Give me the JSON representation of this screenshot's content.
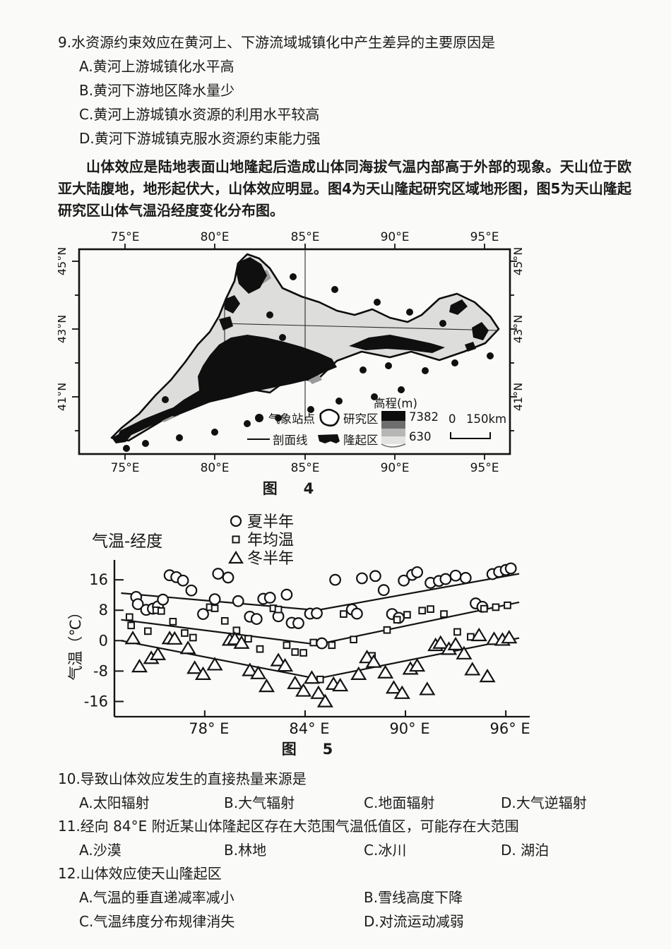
{
  "page": {
    "bg": "#fafaf8",
    "ink": "#1b1b1b"
  },
  "q9": {
    "question": "9.水资源约束效应在黄河上、下游流域城镇化中产生差异的主要原因是",
    "options": [
      "A.黄河上游城镇化水平高",
      "B.黄河下游地区降水量少",
      "C.黄河上游城镇水资源的利用水平较高",
      "D.黄河下游城镇克服水资源约束能力强"
    ]
  },
  "passage": "山体效应是陆地表面山地隆起后造成山体同海拔气温内部高于外部的现象。天山位于欧亚大陆腹地，地形起伏大，山体效应明显。图4为天山隆起研究区域地形图，图5为天山隆起研究区山体气温沿经度变化分布图。",
  "figure4": {
    "caption": "图　4",
    "top_lon": [
      "75°E",
      "80°E",
      "85°E",
      "90°E",
      "95°E"
    ],
    "bottom_lon": [
      "75°E",
      "80°E",
      "85°E",
      "90°E",
      "95°E"
    ],
    "lat_left": [
      "45°N",
      "43°N",
      "41°N"
    ],
    "lat_right": [
      "45°N",
      "43°N",
      "41°N"
    ],
    "legend": {
      "station": "气象站点",
      "study_area": "研究区",
      "profile": "剖面线",
      "uplift": "隆起区",
      "elev_title": "高程(m)",
      "elev_max": "7382",
      "elev_min": "630",
      "scale_zero": "0",
      "scale_len": "150km"
    }
  },
  "figure5": {
    "caption": "图　5",
    "chart_data": {
      "type": "scatter",
      "title": "气温-经度",
      "ylabel": "气温（℃）",
      "xlabel": "",
      "grid": false,
      "legend_position": "top-center",
      "xlim": [
        72.6,
        97.6
      ],
      "ylim": [
        -20,
        19
      ],
      "x_ticks": [
        {
          "v": 78,
          "label": "78° E"
        },
        {
          "v": 84,
          "label": "84° E"
        },
        {
          "v": 90,
          "label": "90° E"
        },
        {
          "v": 96,
          "label": "96° E"
        }
      ],
      "y_ticks": [
        {
          "v": 16,
          "label": "16"
        },
        {
          "v": 8,
          "label": "8"
        },
        {
          "v": 0,
          "label": "0"
        },
        {
          "v": -8,
          "label": "-8"
        },
        {
          "v": -16,
          "label": "-16"
        }
      ],
      "series": [
        {
          "name": "夏半年",
          "marker": "circle",
          "points": [
            [
              73.9,
              11.5
            ],
            [
              74.0,
              9.6
            ],
            [
              74.5,
              8.1
            ],
            [
              74.9,
              8.4
            ],
            [
              75.2,
              9.0
            ],
            [
              75.5,
              10.8
            ],
            [
              75.9,
              17.2
            ],
            [
              76.3,
              16.7
            ],
            [
              76.7,
              15.8
            ],
            [
              77.2,
              13.2
            ],
            [
              77.9,
              7.0
            ],
            [
              78.6,
              10.9
            ],
            [
              78.8,
              17.6
            ],
            [
              79.4,
              16.6
            ],
            [
              80.0,
              10.4
            ],
            [
              80.7,
              6.3
            ],
            [
              81.1,
              5.7
            ],
            [
              81.5,
              11.0
            ],
            [
              81.9,
              11.3
            ],
            [
              82.4,
              6.4
            ],
            [
              82.9,
              12.1
            ],
            [
              83.2,
              4.7
            ],
            [
              83.6,
              4.6
            ],
            [
              84.3,
              7.1
            ],
            [
              84.7,
              7.2
            ],
            [
              85.0,
              -0.7
            ],
            [
              85.8,
              16.0
            ],
            [
              86.8,
              8.2
            ],
            [
              87.1,
              7.1
            ],
            [
              87.4,
              16.4
            ],
            [
              88.2,
              17.0
            ],
            [
              88.7,
              13.3
            ],
            [
              89.2,
              7.0
            ],
            [
              89.6,
              6.0
            ],
            [
              89.9,
              15.8
            ],
            [
              90.4,
              17.3
            ],
            [
              90.7,
              18.0
            ],
            [
              91.5,
              15.2
            ],
            [
              92.0,
              15.7
            ],
            [
              92.4,
              16.2
            ],
            [
              93.0,
              17.1
            ],
            [
              93.6,
              16.5
            ],
            [
              94.2,
              9.8
            ],
            [
              94.6,
              8.9
            ],
            [
              95.2,
              17.5
            ],
            [
              95.6,
              18.1
            ],
            [
              96.0,
              18.6
            ],
            [
              96.3,
              19.0
            ]
          ]
        },
        {
          "name": "年均温",
          "marker": "square",
          "points": [
            [
              73.5,
              6.2
            ],
            [
              73.6,
              4.0
            ],
            [
              74.6,
              2.5
            ],
            [
              75.1,
              8.0
            ],
            [
              75.4,
              7.8
            ],
            [
              76.1,
              5.0
            ],
            [
              76.8,
              2.0
            ],
            [
              77.3,
              0.8
            ],
            [
              78.3,
              8.8
            ],
            [
              78.6,
              8.5
            ],
            [
              79.2,
              5.2
            ],
            [
              79.9,
              2.7
            ],
            [
              80.6,
              0.5
            ],
            [
              81.3,
              -2.2
            ],
            [
              82.1,
              8.5
            ],
            [
              82.4,
              8.2
            ],
            [
              82.9,
              -1.2
            ],
            [
              83.4,
              -3.0
            ],
            [
              83.9,
              -3.2
            ],
            [
              84.5,
              -0.5
            ],
            [
              84.9,
              -10.2
            ],
            [
              85.6,
              -1.2
            ],
            [
              86.3,
              7.0
            ],
            [
              86.9,
              0.3
            ],
            [
              88.0,
              -4.0
            ],
            [
              88.9,
              2.8
            ],
            [
              89.5,
              5.5
            ],
            [
              90.1,
              6.8
            ],
            [
              91.0,
              7.9
            ],
            [
              91.5,
              8.3
            ],
            [
              92.3,
              7.0
            ],
            [
              93.1,
              2.3
            ],
            [
              93.9,
              1.0
            ],
            [
              94.7,
              8.4
            ],
            [
              95.4,
              8.8
            ],
            [
              96.1,
              9.3
            ]
          ]
        },
        {
          "name": "冬半年",
          "marker": "triangle",
          "points": [
            [
              73.7,
              0.6
            ],
            [
              74.1,
              -6.8
            ],
            [
              74.8,
              -4.6
            ],
            [
              75.2,
              -3.6
            ],
            [
              75.9,
              0.6
            ],
            [
              76.2,
              0.5
            ],
            [
              77.0,
              -2.0
            ],
            [
              77.4,
              -7.2
            ],
            [
              77.9,
              -8.8
            ],
            [
              78.6,
              -6.3
            ],
            [
              79.5,
              0.2
            ],
            [
              79.8,
              0.4
            ],
            [
              80.2,
              -0.6
            ],
            [
              80.7,
              -7.8
            ],
            [
              81.2,
              -8.6
            ],
            [
              81.7,
              -12.0
            ],
            [
              82.4,
              -5.2
            ],
            [
              82.8,
              -6.6
            ],
            [
              83.4,
              -11.2
            ],
            [
              83.9,
              -13.2
            ],
            [
              84.4,
              -9.8
            ],
            [
              84.8,
              -13.8
            ],
            [
              85.2,
              -16.0
            ],
            [
              85.7,
              -11.4
            ],
            [
              86.1,
              -11.8
            ],
            [
              87.2,
              -8.8
            ],
            [
              87.7,
              -4.4
            ],
            [
              88.1,
              -5.6
            ],
            [
              88.8,
              -8.4
            ],
            [
              89.3,
              -12.4
            ],
            [
              89.8,
              -13.8
            ],
            [
              90.3,
              -7.4
            ],
            [
              90.7,
              -6.6
            ],
            [
              91.3,
              -12.8
            ],
            [
              91.8,
              -1.2
            ],
            [
              92.1,
              -0.6
            ],
            [
              92.6,
              -2.2
            ],
            [
              93.0,
              -1.0
            ],
            [
              93.5,
              -3.4
            ],
            [
              94.0,
              -7.6
            ],
            [
              94.4,
              1.4
            ],
            [
              94.9,
              -9.4
            ],
            [
              95.3,
              0.4
            ],
            [
              95.8,
              0.2
            ],
            [
              96.2,
              0.8
            ]
          ]
        }
      ],
      "trend_lines": [
        {
          "series": "夏半年",
          "points": [
            [
              73.0,
              12.5
            ],
            [
              84.7,
              8.0
            ],
            [
              96.8,
              17.6
            ]
          ]
        },
        {
          "series": "年均温",
          "points": [
            [
              73.0,
              5.5
            ],
            [
              84.7,
              -1.0
            ],
            [
              96.8,
              10.1
            ]
          ]
        },
        {
          "series": "冬半年",
          "points": [
            [
              73.0,
              0.0
            ],
            [
              84.7,
              -10.0
            ],
            [
              96.8,
              0.7
            ]
          ]
        }
      ]
    }
  },
  "q10": {
    "question": "10.导致山体效应发生的直接热量来源是",
    "options": [
      "A.太阳辐射",
      "B.大气辐射",
      "C.地面辐射",
      "D.大气逆辐射"
    ]
  },
  "q11": {
    "question": "11.经向 84°E 附近某山体隆起区存在大范围气温低值区，可能存在大范围",
    "options": [
      "A.沙漠",
      "B.林地",
      "C.冰川",
      "D. 湖泊"
    ]
  },
  "q12": {
    "question": "12.山体效应使天山隆起区",
    "options": [
      "A.气温的垂直递减率减小",
      "B.雪线高度下降",
      "C.气温纬度分布规律消失",
      "D.对流运动减弱"
    ]
  }
}
